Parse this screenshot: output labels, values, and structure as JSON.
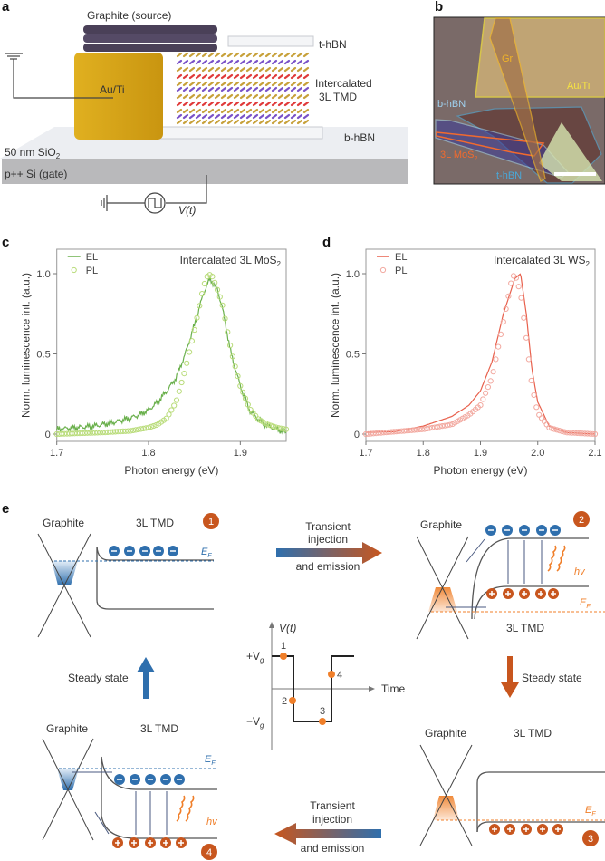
{
  "panels": {
    "a": "a",
    "b": "b",
    "c": "c",
    "d": "d",
    "e": "e"
  },
  "panel_a": {
    "graphite": "Graphite (source)",
    "t_hbn": "t-hBN",
    "au_ti": "Au/Ti",
    "tmd_line1": "Intercalated",
    "tmd_line2": "3L TMD",
    "b_hbn": "b-hBN",
    "sio2": "50 nm SiO",
    "sio2_sub": "2",
    "si": "p++ Si (gate)",
    "vt": "V(t)"
  },
  "panel_b": {
    "gr": "Gr",
    "au_ti": "Au/Ti",
    "b_hbn": "b-hBN",
    "mos2": "3L MoS",
    "mos2_sub": "2",
    "t_hbn": "t-hBN",
    "colors": {
      "gr": "#f0b429",
      "au_ti": "#f5e342",
      "hbn": "#4aa8d8",
      "mos2": "#f26a2e"
    }
  },
  "chart_data": [
    {
      "type": "line",
      "title": "Intercalated 3L MoS",
      "title_sub": "2",
      "xlabel": "Photon energy (eV)",
      "ylabel": "Norm. luminescence int. (a.u.)",
      "xlim": [
        1.7,
        1.95
      ],
      "ylim": [
        0,
        1.0
      ],
      "xticks": [
        "1.7",
        "1.8",
        "1.9"
      ],
      "yticks": [
        "0",
        "0.5",
        "1.0"
      ],
      "legend": "top-left",
      "series": [
        {
          "name": "EL",
          "style": "line",
          "color": "#6ab04c",
          "x": [
            1.7,
            1.72,
            1.74,
            1.76,
            1.78,
            1.79,
            1.8,
            1.81,
            1.82,
            1.83,
            1.84,
            1.85,
            1.86,
            1.867,
            1.875,
            1.88,
            1.89,
            1.9,
            1.91,
            1.92,
            1.93,
            1.94,
            1.95
          ],
          "y": [
            0.03,
            0.04,
            0.05,
            0.07,
            0.1,
            0.12,
            0.15,
            0.2,
            0.27,
            0.35,
            0.5,
            0.68,
            0.88,
            0.97,
            0.9,
            0.8,
            0.5,
            0.3,
            0.15,
            0.09,
            0.05,
            0.03,
            0.01
          ]
        },
        {
          "name": "PL",
          "style": "markers",
          "color": "#b9dc7a",
          "x": [
            1.7,
            1.75,
            1.78,
            1.8,
            1.81,
            1.82,
            1.83,
            1.84,
            1.85,
            1.86,
            1.865,
            1.87,
            1.88,
            1.89,
            1.9,
            1.91,
            1.92,
            1.93,
            1.94,
            1.95
          ],
          "y": [
            0.0,
            0.01,
            0.02,
            0.04,
            0.06,
            0.1,
            0.2,
            0.4,
            0.65,
            0.92,
            1.0,
            0.98,
            0.82,
            0.52,
            0.3,
            0.16,
            0.09,
            0.06,
            0.04,
            0.03
          ]
        }
      ]
    },
    {
      "type": "line",
      "title": "Intercalated 3L WS",
      "title_sub": "2",
      "xlabel": "Photon energy (eV)",
      "ylabel": "Norm. luminescence int. (a.u.)",
      "xlim": [
        1.7,
        2.1
      ],
      "ylim": [
        0,
        1.0
      ],
      "xticks": [
        "1.7",
        "1.8",
        "1.9",
        "2.0",
        "2.1"
      ],
      "yticks": [
        "0",
        "0.5",
        "1.0"
      ],
      "legend": "top-left",
      "series": [
        {
          "name": "EL",
          "style": "line",
          "color": "#e8604c",
          "x": [
            1.7,
            1.75,
            1.8,
            1.85,
            1.88,
            1.9,
            1.92,
            1.94,
            1.96,
            1.97,
            1.98,
            1.99,
            2.0,
            2.02,
            2.05,
            2.1
          ],
          "y": [
            0.01,
            0.015,
            0.05,
            0.11,
            0.18,
            0.27,
            0.45,
            0.75,
            0.97,
            1.0,
            0.75,
            0.4,
            0.2,
            0.05,
            0.01,
            0.0
          ]
        },
        {
          "name": "PL",
          "style": "markers",
          "color": "#f2a9a0",
          "x": [
            1.7,
            1.8,
            1.85,
            1.88,
            1.9,
            1.92,
            1.94,
            1.955,
            1.96,
            1.97,
            1.98,
            1.99,
            2.0,
            2.02,
            2.05,
            2.1
          ],
          "y": [
            0.0,
            0.03,
            0.06,
            0.12,
            0.18,
            0.35,
            0.7,
            0.97,
            1.0,
            0.88,
            0.6,
            0.3,
            0.13,
            0.04,
            0.01,
            0.0
          ]
        }
      ]
    }
  ],
  "panel_e": {
    "graphite": "Graphite",
    "tmd": "3L TMD",
    "ef": "E",
    "ef_sub": "F",
    "hv": "hv",
    "badges": [
      "1",
      "2",
      "3",
      "4"
    ],
    "transient_line1": "Transient",
    "transient_line2": "injection",
    "transient_line3": "and emission",
    "steady": "Steady state",
    "vt": "V(t)",
    "time": "Time",
    "plus_vg": "+V",
    "minus_vg": "−V",
    "vg_sub": "g",
    "points": [
      "1",
      "2",
      "3",
      "4"
    ],
    "colors": {
      "electron": "#2f6fad",
      "hole": "#c8561e",
      "photon": "#f07f2a",
      "badge": "#c8561e"
    }
  }
}
